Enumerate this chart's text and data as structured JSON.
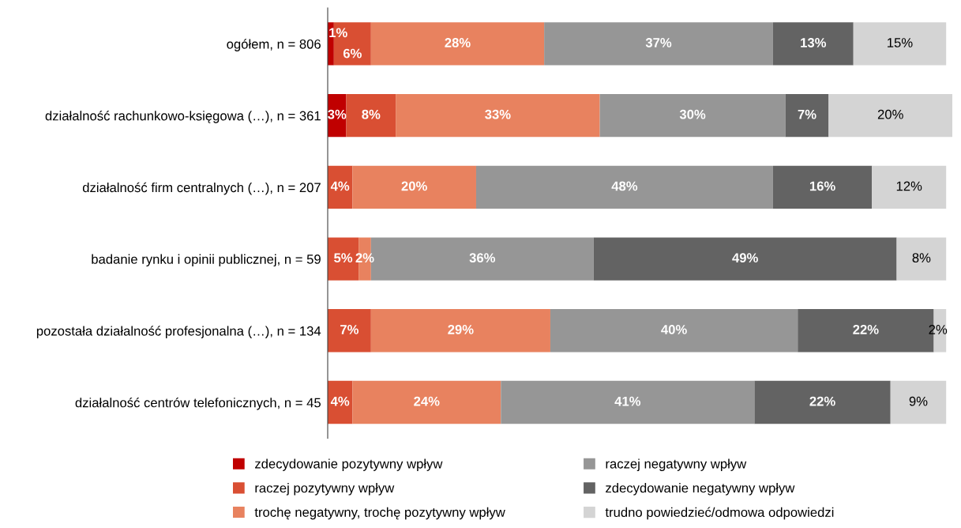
{
  "chart_data": {
    "type": "bar",
    "orientation": "horizontal",
    "stacked": true,
    "tick_labels": "y",
    "grid": false,
    "legend": "bottom",
    "xlim": [
      0,
      101
    ],
    "categories": [
      "ogółem, n = 806",
      "działalność rachunkowo-księgowa (…), n = 361",
      "działalność firm centralnych (…), n = 207",
      "badanie rynku i opinii publicznej, n = 59",
      "pozostała działalność profesjonalna (…), n = 134",
      "działalność centrów telefonicznych, n = 45"
    ],
    "series": [
      {
        "name": "zdecydowanie pozytywny wpływ",
        "color": "#c00000",
        "values": [
          1,
          3,
          null,
          null,
          null,
          null
        ],
        "value_labels": [
          "1%",
          "3%",
          null,
          null,
          null,
          null
        ]
      },
      {
        "name": "raczej pozytywny wpływ",
        "color": "#d94f33",
        "values": [
          6,
          8,
          4,
          5,
          7,
          4
        ],
        "value_labels": [
          "6%",
          "8%",
          "4%",
          "5%",
          "7%",
          "4%"
        ]
      },
      {
        "name": "trochę negatywny, trochę pozytywny wpływ",
        "color": "#e8825f",
        "values": [
          28,
          33,
          20,
          2,
          29,
          24
        ],
        "value_labels": [
          "28%",
          "33%",
          "20%",
          "2%",
          "29%",
          "24%"
        ]
      },
      {
        "name": "raczej negatywny wpływ",
        "color": "#969696",
        "values": [
          37,
          30,
          48,
          36,
          40,
          41
        ],
        "value_labels": [
          "37%",
          "30%",
          "48%",
          "36%",
          "40%",
          "41%"
        ]
      },
      {
        "name": "zdecydowanie negatywny wpływ",
        "color": "#636363",
        "values": [
          13,
          7,
          16,
          49,
          22,
          22
        ],
        "value_labels": [
          "13%",
          "7%",
          "16%",
          "49%",
          "22%",
          "22%"
        ]
      },
      {
        "name": "trudno powiedzieć/odmowa odpowiedzi",
        "color": "#d4d4d4",
        "values": [
          15,
          20,
          12,
          8,
          2,
          9
        ],
        "value_labels": [
          "15%",
          "20%",
          "12%",
          "8%",
          "2%",
          "9%"
        ]
      }
    ]
  }
}
